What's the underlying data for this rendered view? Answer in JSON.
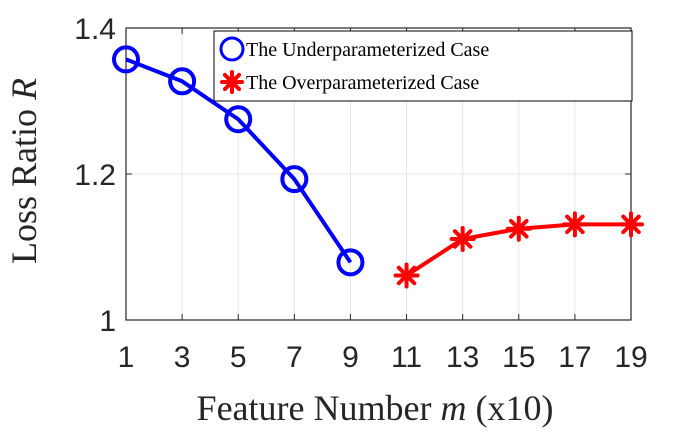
{
  "chart_data": {
    "type": "line",
    "xlabel": "Feature Number",
    "xlabel_var": "m",
    "xlabel_unit": "(x10)",
    "ylabel": "Loss Ratio",
    "ylabel_var": "R",
    "xlim": [
      1,
      19
    ],
    "ylim": [
      1,
      1.4
    ],
    "xticks": [
      1,
      3,
      5,
      7,
      9,
      11,
      13,
      15,
      17,
      19
    ],
    "yticks": [
      1,
      1.2,
      1.4
    ],
    "ytick_labels": [
      "1",
      "1.2",
      "1.4"
    ],
    "grid": true,
    "legend_position": "top-right",
    "series": [
      {
        "name": "The Underparameterized Case",
        "marker": "circle",
        "color": "#0000ff",
        "x": [
          1,
          3,
          5,
          7,
          9
        ],
        "y": [
          1.357,
          1.327,
          1.275,
          1.193,
          1.079
        ]
      },
      {
        "name": "The Overparameterized Case",
        "marker": "asterisk",
        "color": "#ff0000",
        "x": [
          11,
          13,
          15,
          17,
          19
        ],
        "y": [
          1.061,
          1.111,
          1.125,
          1.131,
          1.131
        ]
      }
    ]
  }
}
